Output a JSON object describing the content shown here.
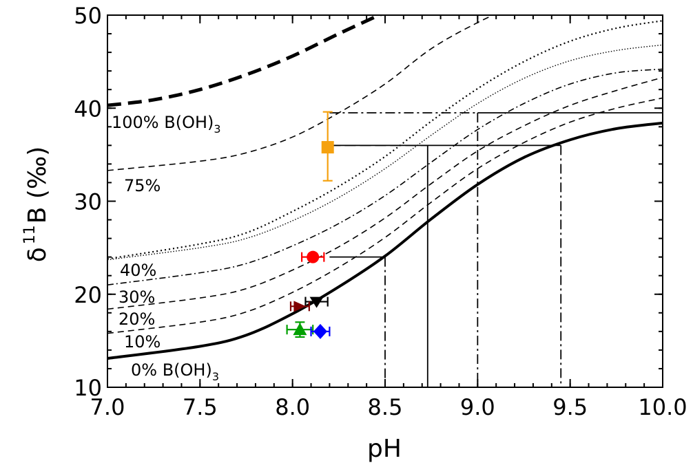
{
  "chart_data": {
    "type": "line",
    "xlabel": "pH",
    "ylabel": {
      "delta": "δ",
      "superscript": "11",
      "main": "B (‰)"
    },
    "xlim": [
      7.0,
      10.0
    ],
    "ylim": [
      10,
      50
    ],
    "xticks": [
      "7.0",
      "7.5",
      "8.0",
      "8.5",
      "9.0",
      "9.5",
      "10.0"
    ],
    "yticks": [
      "10",
      "20",
      "30",
      "40",
      "50"
    ],
    "grid": false,
    "series": [
      {
        "label": "0% B(OH)",
        "label_sub": "3",
        "style": "solid-thick",
        "x": [
          7.0,
          7.5,
          7.75,
          8.0,
          8.25,
          8.5,
          8.75,
          9.0,
          9.25,
          9.5,
          9.75,
          10.0
        ],
        "y": [
          13.1,
          14.4,
          15.6,
          17.9,
          20.8,
          24.1,
          28.1,
          31.8,
          34.7,
          36.6,
          37.8,
          38.4
        ]
      },
      {
        "label": "10%",
        "style": "dashed",
        "x": [
          7.0,
          7.5,
          7.75,
          8.0,
          8.25,
          8.5,
          8.75,
          9.0,
          9.25,
          9.5,
          9.75,
          10.0
        ],
        "y": [
          15.8,
          17.0,
          18.1,
          20.2,
          22.9,
          26.1,
          29.9,
          33.5,
          36.3,
          38.5,
          40.0,
          41.1
        ]
      },
      {
        "label": "20%",
        "style": "dashed",
        "x": [
          7.0,
          7.5,
          7.75,
          8.0,
          8.25,
          8.5,
          8.75,
          9.0,
          9.25,
          9.5,
          9.75,
          10.0
        ],
        "y": [
          18.4,
          19.6,
          20.6,
          22.6,
          25.1,
          28.2,
          31.9,
          35.4,
          38.1,
          40.3,
          41.9,
          43.3
        ]
      },
      {
        "label": "30%",
        "style": "dashdot",
        "x": [
          7.0,
          7.5,
          7.75,
          8.0,
          8.25,
          8.5,
          8.75,
          9.0,
          9.25,
          9.5,
          9.75,
          10.0
        ],
        "y": [
          21.0,
          22.3,
          23.3,
          25.2,
          27.6,
          30.6,
          34.2,
          37.7,
          40.5,
          42.6,
          43.8,
          44.2
        ]
      },
      {
        "label": "40%",
        "style": "dotted-fine",
        "x": [
          7.0,
          7.5,
          7.75,
          8.0,
          8.25,
          8.5,
          8.75,
          9.0,
          9.25,
          9.5,
          9.75,
          10.0
        ],
        "y": [
          23.7,
          25.0,
          26.0,
          27.9,
          30.4,
          33.5,
          37.1,
          40.5,
          43.2,
          45.1,
          46.2,
          46.8
        ]
      },
      {
        "label": "",
        "style": "dotted",
        "x": [
          7.0,
          7.5,
          7.75,
          8.0,
          8.25,
          8.5,
          8.75,
          9.0,
          9.25,
          9.5,
          9.75,
          10.0
        ],
        "y": [
          23.8,
          25.4,
          26.6,
          28.9,
          31.6,
          34.8,
          38.6,
          42.1,
          45.0,
          47.2,
          48.6,
          49.4
        ]
      },
      {
        "label": "75%",
        "style": "dashed",
        "x": [
          7.0,
          7.5,
          7.75,
          8.0,
          8.25,
          8.5,
          8.75,
          9.0,
          9.25
        ],
        "y": [
          33.3,
          34.3,
          35.2,
          36.9,
          39.5,
          42.6,
          46.4,
          49.2,
          51.5
        ]
      },
      {
        "label": "100% B(OH)",
        "label_sub": "3",
        "style": "dashed-thick",
        "x": [
          7.0,
          7.25,
          7.5,
          7.75,
          8.0,
          8.25,
          8.5
        ],
        "y": [
          40.3,
          40.9,
          42.0,
          43.6,
          45.6,
          48.0,
          50.3
        ]
      }
    ],
    "guides": [
      {
        "pH": 8.5,
        "d11B": 24.0,
        "from_pH": 8.2,
        "horizontal": "solid",
        "vertical": "dashdot"
      },
      {
        "pH": 8.73,
        "d11B": 36.0,
        "from_pH": 8.2,
        "horizontal": "dashed",
        "vertical": "solid"
      },
      {
        "pH": 9.0,
        "d11B": 39.5,
        "from_pH": 8.2,
        "horizontal": "dashdot",
        "vertical": "dashdot"
      },
      {
        "pH": 9.45,
        "d11B": 36.0,
        "from_pH": 8.2,
        "horizontal": "solid",
        "vertical": "dashdot"
      },
      {
        "pH": 10.0,
        "d11B": 39.5,
        "from_pH": 9.0,
        "horizontal": "solid",
        "vertical": "none"
      }
    ],
    "data_points": [
      {
        "marker": "square",
        "color": "#f5a10f",
        "x": 8.19,
        "y": 35.8,
        "xerr": 0,
        "yerr_low": 32.2,
        "yerr_high": 39.6
      },
      {
        "marker": "circle",
        "color": "#ff0000",
        "x": 8.11,
        "y": 24.0,
        "xerr": 0.06,
        "yerr_low": 24.0,
        "yerr_high": 24.0
      },
      {
        "marker": "triangle-down",
        "color": "#000000",
        "x": 8.13,
        "y": 19.2,
        "xerr": 0.06,
        "yerr_low": 19.2,
        "yerr_high": 19.2
      },
      {
        "marker": "triangle-right",
        "color": "#800000",
        "x": 8.04,
        "y": 18.7,
        "xerr": 0.05,
        "yerr_low": 18.7,
        "yerr_high": 18.7
      },
      {
        "marker": "triangle-up",
        "color": "#00a000",
        "x": 8.04,
        "y": 16.2,
        "xerr": 0.07,
        "yerr_low": 15.4,
        "yerr_high": 17.0
      },
      {
        "marker": "diamond",
        "color": "#0000ff",
        "x": 8.15,
        "y": 16.0,
        "xerr": 0.05,
        "yerr_low": 16.0,
        "yerr_high": 16.0
      }
    ]
  }
}
